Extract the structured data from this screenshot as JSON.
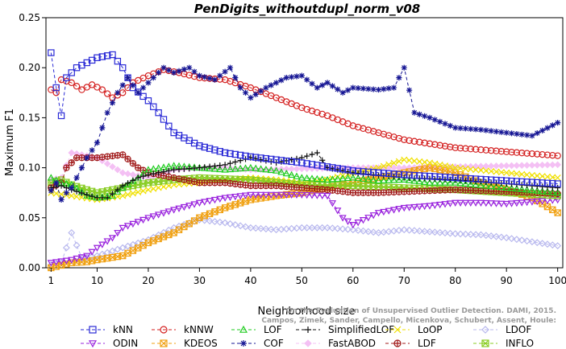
{
  "chart_data": {
    "type": "line",
    "title": "PenDigits_withoutdupl_norm_v08",
    "xlabel": "Neighborhood size",
    "ylabel": "Maximum F1",
    "xlim": [
      0,
      101
    ],
    "ylim": [
      0,
      0.25
    ],
    "x_ticks": [
      1,
      10,
      20,
      30,
      40,
      50,
      60,
      70,
      80,
      90,
      100
    ],
    "x_tick_labels": [
      "1",
      "10",
      "20",
      "30",
      "40",
      "50",
      "60",
      "70",
      "80",
      "90",
      "100"
    ],
    "y_ticks": [
      0,
      0.05,
      0.1,
      0.15,
      0.2,
      0.25
    ],
    "y_tick_labels": [
      "0.00",
      "0.05",
      "0.10",
      "0.15",
      "0.20",
      "0.25"
    ],
    "legend_position": "bottom",
    "credit": "Campos, Zimek, Sander, Campello, Micenkova, Schubert, Assent, Houle: On the Evaluation of Unsupervised Outlier Detection. DAMI, 2015.",
    "series": [
      {
        "name": "kNN",
        "color": "#2a2ad6",
        "marker": "square",
        "dash": "4,3",
        "opacity": 1,
        "knots": [
          [
            1,
            0.215
          ],
          [
            2,
            0.18
          ],
          [
            3,
            0.152
          ],
          [
            4,
            0.19
          ],
          [
            6,
            0.2
          ],
          [
            8,
            0.205
          ],
          [
            10,
            0.21
          ],
          [
            13,
            0.213
          ],
          [
            15,
            0.2
          ],
          [
            17,
            0.18
          ],
          [
            20,
            0.167
          ],
          [
            22,
            0.155
          ],
          [
            25,
            0.135
          ],
          [
            30,
            0.122
          ],
          [
            35,
            0.115
          ],
          [
            40,
            0.111
          ],
          [
            50,
            0.105
          ],
          [
            60,
            0.097
          ],
          [
            70,
            0.093
          ],
          [
            80,
            0.09
          ],
          [
            90,
            0.087
          ],
          [
            100,
            0.084
          ]
        ]
      },
      {
        "name": "kNNW",
        "color": "#d42020",
        "marker": "circle",
        "dash": "4,3",
        "opacity": 1,
        "knots": [
          [
            1,
            0.178
          ],
          [
            2,
            0.175
          ],
          [
            3,
            0.188
          ],
          [
            5,
            0.185
          ],
          [
            7,
            0.178
          ],
          [
            9,
            0.183
          ],
          [
            11,
            0.178
          ],
          [
            13,
            0.17
          ],
          [
            15,
            0.175
          ],
          [
            17,
            0.185
          ],
          [
            20,
            0.192
          ],
          [
            23,
            0.198
          ],
          [
            26,
            0.195
          ],
          [
            30,
            0.19
          ],
          [
            35,
            0.188
          ],
          [
            40,
            0.18
          ],
          [
            45,
            0.17
          ],
          [
            50,
            0.16
          ],
          [
            55,
            0.152
          ],
          [
            60,
            0.142
          ],
          [
            65,
            0.135
          ],
          [
            70,
            0.128
          ],
          [
            80,
            0.12
          ],
          [
            90,
            0.116
          ],
          [
            100,
            0.112
          ]
        ]
      },
      {
        "name": "LOF",
        "color": "#22cc22",
        "marker": "triangle",
        "dash": "4,3",
        "opacity": 1,
        "knots": [
          [
            1,
            0.09
          ],
          [
            3,
            0.085
          ],
          [
            5,
            0.083
          ],
          [
            8,
            0.072
          ],
          [
            10,
            0.07
          ],
          [
            13,
            0.072
          ],
          [
            15,
            0.08
          ],
          [
            18,
            0.09
          ],
          [
            20,
            0.098
          ],
          [
            25,
            0.102
          ],
          [
            30,
            0.1
          ],
          [
            35,
            0.098
          ],
          [
            40,
            0.1
          ],
          [
            45,
            0.097
          ],
          [
            50,
            0.09
          ],
          [
            55,
            0.088
          ],
          [
            60,
            0.09
          ],
          [
            65,
            0.087
          ],
          [
            70,
            0.088
          ],
          [
            75,
            0.085
          ],
          [
            80,
            0.085
          ],
          [
            90,
            0.08
          ],
          [
            100,
            0.075
          ]
        ]
      },
      {
        "name": "SimplifiedLOF",
        "color": "#111111",
        "marker": "plus",
        "dash": "4,3",
        "opacity": 1,
        "knots": [
          [
            1,
            0.08
          ],
          [
            3,
            0.082
          ],
          [
            5,
            0.078
          ],
          [
            8,
            0.073
          ],
          [
            10,
            0.07
          ],
          [
            12,
            0.07
          ],
          [
            15,
            0.082
          ],
          [
            18,
            0.09
          ],
          [
            20,
            0.093
          ],
          [
            25,
            0.098
          ],
          [
            30,
            0.1
          ],
          [
            35,
            0.103
          ],
          [
            40,
            0.11
          ],
          [
            45,
            0.105
          ],
          [
            50,
            0.11
          ],
          [
            53,
            0.115
          ],
          [
            55,
            0.1
          ],
          [
            60,
            0.095
          ],
          [
            70,
            0.09
          ],
          [
            80,
            0.088
          ],
          [
            90,
            0.084
          ],
          [
            100,
            0.08
          ]
        ]
      },
      {
        "name": "LoOP",
        "color": "#f0e000",
        "marker": "cross",
        "dash": "4,3",
        "opacity": 1,
        "knots": [
          [
            1,
            0.075
          ],
          [
            5,
            0.072
          ],
          [
            10,
            0.068
          ],
          [
            15,
            0.072
          ],
          [
            20,
            0.078
          ],
          [
            25,
            0.083
          ],
          [
            30,
            0.085
          ],
          [
            35,
            0.088
          ],
          [
            40,
            0.09
          ],
          [
            45,
            0.088
          ],
          [
            50,
            0.085
          ],
          [
            55,
            0.088
          ],
          [
            60,
            0.095
          ],
          [
            65,
            0.1
          ],
          [
            70,
            0.108
          ],
          [
            75,
            0.105
          ],
          [
            80,
            0.1
          ],
          [
            90,
            0.095
          ],
          [
            100,
            0.09
          ]
        ]
      },
      {
        "name": "LDOF",
        "color": "#b8b8ee",
        "marker": "diamond",
        "dash": "4,3",
        "opacity": 1,
        "knots": [
          [
            1,
            0.003
          ],
          [
            3,
            0.005
          ],
          [
            5,
            0.035
          ],
          [
            7,
            0.01
          ],
          [
            10,
            0.012
          ],
          [
            15,
            0.02
          ],
          [
            20,
            0.028
          ],
          [
            25,
            0.04
          ],
          [
            30,
            0.048
          ],
          [
            35,
            0.045
          ],
          [
            40,
            0.04
          ],
          [
            45,
            0.038
          ],
          [
            50,
            0.04
          ],
          [
            55,
            0.04
          ],
          [
            60,
            0.038
          ],
          [
            65,
            0.035
          ],
          [
            70,
            0.038
          ],
          [
            75,
            0.036
          ],
          [
            80,
            0.034
          ],
          [
            85,
            0.033
          ],
          [
            90,
            0.03
          ],
          [
            95,
            0.026
          ],
          [
            100,
            0.022
          ]
        ]
      },
      {
        "name": "ODIN",
        "color": "#9922dd",
        "marker": "triangle-down",
        "dash": "4,3",
        "opacity": 1,
        "knots": [
          [
            1,
            0.005
          ],
          [
            5,
            0.008
          ],
          [
            8,
            0.012
          ],
          [
            10,
            0.02
          ],
          [
            13,
            0.03
          ],
          [
            15,
            0.04
          ],
          [
            20,
            0.05
          ],
          [
            25,
            0.058
          ],
          [
            30,
            0.065
          ],
          [
            35,
            0.07
          ],
          [
            40,
            0.073
          ],
          [
            45,
            0.073
          ],
          [
            50,
            0.073
          ],
          [
            55,
            0.072
          ],
          [
            58,
            0.05
          ],
          [
            60,
            0.043
          ],
          [
            65,
            0.055
          ],
          [
            70,
            0.06
          ],
          [
            75,
            0.062
          ],
          [
            80,
            0.065
          ],
          [
            85,
            0.065
          ],
          [
            90,
            0.064
          ],
          [
            95,
            0.066
          ],
          [
            100,
            0.068
          ]
        ]
      },
      {
        "name": "KDEOS",
        "color": "#f0a010",
        "marker": "square-x",
        "dash": "4,3",
        "opacity": 1,
        "knots": [
          [
            1,
            0.0
          ],
          [
            5,
            0.005
          ],
          [
            8,
            0.006
          ],
          [
            10,
            0.008
          ],
          [
            15,
            0.012
          ],
          [
            20,
            0.025
          ],
          [
            25,
            0.035
          ],
          [
            30,
            0.05
          ],
          [
            35,
            0.06
          ],
          [
            40,
            0.068
          ],
          [
            45,
            0.072
          ],
          [
            50,
            0.075
          ],
          [
            55,
            0.08
          ],
          [
            60,
            0.085
          ],
          [
            65,
            0.09
          ],
          [
            70,
            0.095
          ],
          [
            75,
            0.1
          ],
          [
            80,
            0.095
          ],
          [
            85,
            0.085
          ],
          [
            90,
            0.078
          ],
          [
            95,
            0.07
          ],
          [
            100,
            0.055
          ]
        ]
      },
      {
        "name": "COF",
        "color": "#161694",
        "marker": "star",
        "dash": "4,3",
        "opacity": 1,
        "knots": [
          [
            1,
            0.077
          ],
          [
            2,
            0.085
          ],
          [
            3,
            0.068
          ],
          [
            4,
            0.075
          ],
          [
            5,
            0.08
          ],
          [
            6,
            0.09
          ],
          [
            8,
            0.11
          ],
          [
            10,
            0.125
          ],
          [
            12,
            0.155
          ],
          [
            14,
            0.175
          ],
          [
            16,
            0.19
          ],
          [
            18,
            0.175
          ],
          [
            20,
            0.185
          ],
          [
            23,
            0.2
          ],
          [
            25,
            0.195
          ],
          [
            28,
            0.2
          ],
          [
            30,
            0.192
          ],
          [
            33,
            0.188
          ],
          [
            36,
            0.2
          ],
          [
            38,
            0.18
          ],
          [
            40,
            0.17
          ],
          [
            43,
            0.18
          ],
          [
            47,
            0.19
          ],
          [
            50,
            0.192
          ],
          [
            53,
            0.18
          ],
          [
            55,
            0.185
          ],
          [
            58,
            0.175
          ],
          [
            60,
            0.18
          ],
          [
            65,
            0.178
          ],
          [
            68,
            0.18
          ],
          [
            70,
            0.2
          ],
          [
            72,
            0.155
          ],
          [
            75,
            0.15
          ],
          [
            80,
            0.14
          ],
          [
            85,
            0.138
          ],
          [
            90,
            0.135
          ],
          [
            95,
            0.132
          ],
          [
            100,
            0.145
          ]
        ]
      },
      {
        "name": "FastABOD",
        "color": "#f4c0f4",
        "marker": "diamond-filled",
        "dash": "4,3",
        "opacity": 1,
        "knots": [
          [
            1,
            0.088
          ],
          [
            3,
            0.09
          ],
          [
            5,
            0.115
          ],
          [
            7,
            0.113
          ],
          [
            10,
            0.11
          ],
          [
            15,
            0.095
          ],
          [
            20,
            0.09
          ],
          [
            25,
            0.098
          ],
          [
            30,
            0.1
          ],
          [
            35,
            0.1
          ],
          [
            40,
            0.098
          ],
          [
            50,
            0.099
          ],
          [
            60,
            0.1
          ],
          [
            70,
            0.1
          ],
          [
            80,
            0.101
          ],
          [
            90,
            0.102
          ],
          [
            100,
            0.103
          ]
        ]
      },
      {
        "name": "LDF",
        "color": "#a01818",
        "marker": "circle-plus",
        "dash": "4,3",
        "opacity": 1,
        "knots": [
          [
            1,
            0.08
          ],
          [
            3,
            0.085
          ],
          [
            4,
            0.1
          ],
          [
            6,
            0.11
          ],
          [
            8,
            0.11
          ],
          [
            10,
            0.11
          ],
          [
            15,
            0.113
          ],
          [
            18,
            0.1
          ],
          [
            20,
            0.095
          ],
          [
            25,
            0.09
          ],
          [
            30,
            0.085
          ],
          [
            35,
            0.085
          ],
          [
            40,
            0.082
          ],
          [
            45,
            0.082
          ],
          [
            50,
            0.08
          ],
          [
            55,
            0.078
          ],
          [
            60,
            0.075
          ],
          [
            65,
            0.075
          ],
          [
            70,
            0.076
          ],
          [
            80,
            0.078
          ],
          [
            90,
            0.076
          ],
          [
            100,
            0.074
          ]
        ]
      },
      {
        "name": "INFLO",
        "color": "#88cc22",
        "marker": "square-star",
        "dash": "4,3",
        "opacity": 1,
        "knots": [
          [
            1,
            0.085
          ],
          [
            3,
            0.088
          ],
          [
            5,
            0.083
          ],
          [
            8,
            0.078
          ],
          [
            10,
            0.075
          ],
          [
            15,
            0.08
          ],
          [
            20,
            0.085
          ],
          [
            25,
            0.088
          ],
          [
            30,
            0.09
          ],
          [
            40,
            0.088
          ],
          [
            50,
            0.083
          ],
          [
            60,
            0.082
          ],
          [
            70,
            0.08
          ],
          [
            80,
            0.078
          ],
          [
            90,
            0.075
          ],
          [
            100,
            0.072
          ]
        ]
      }
    ]
  }
}
